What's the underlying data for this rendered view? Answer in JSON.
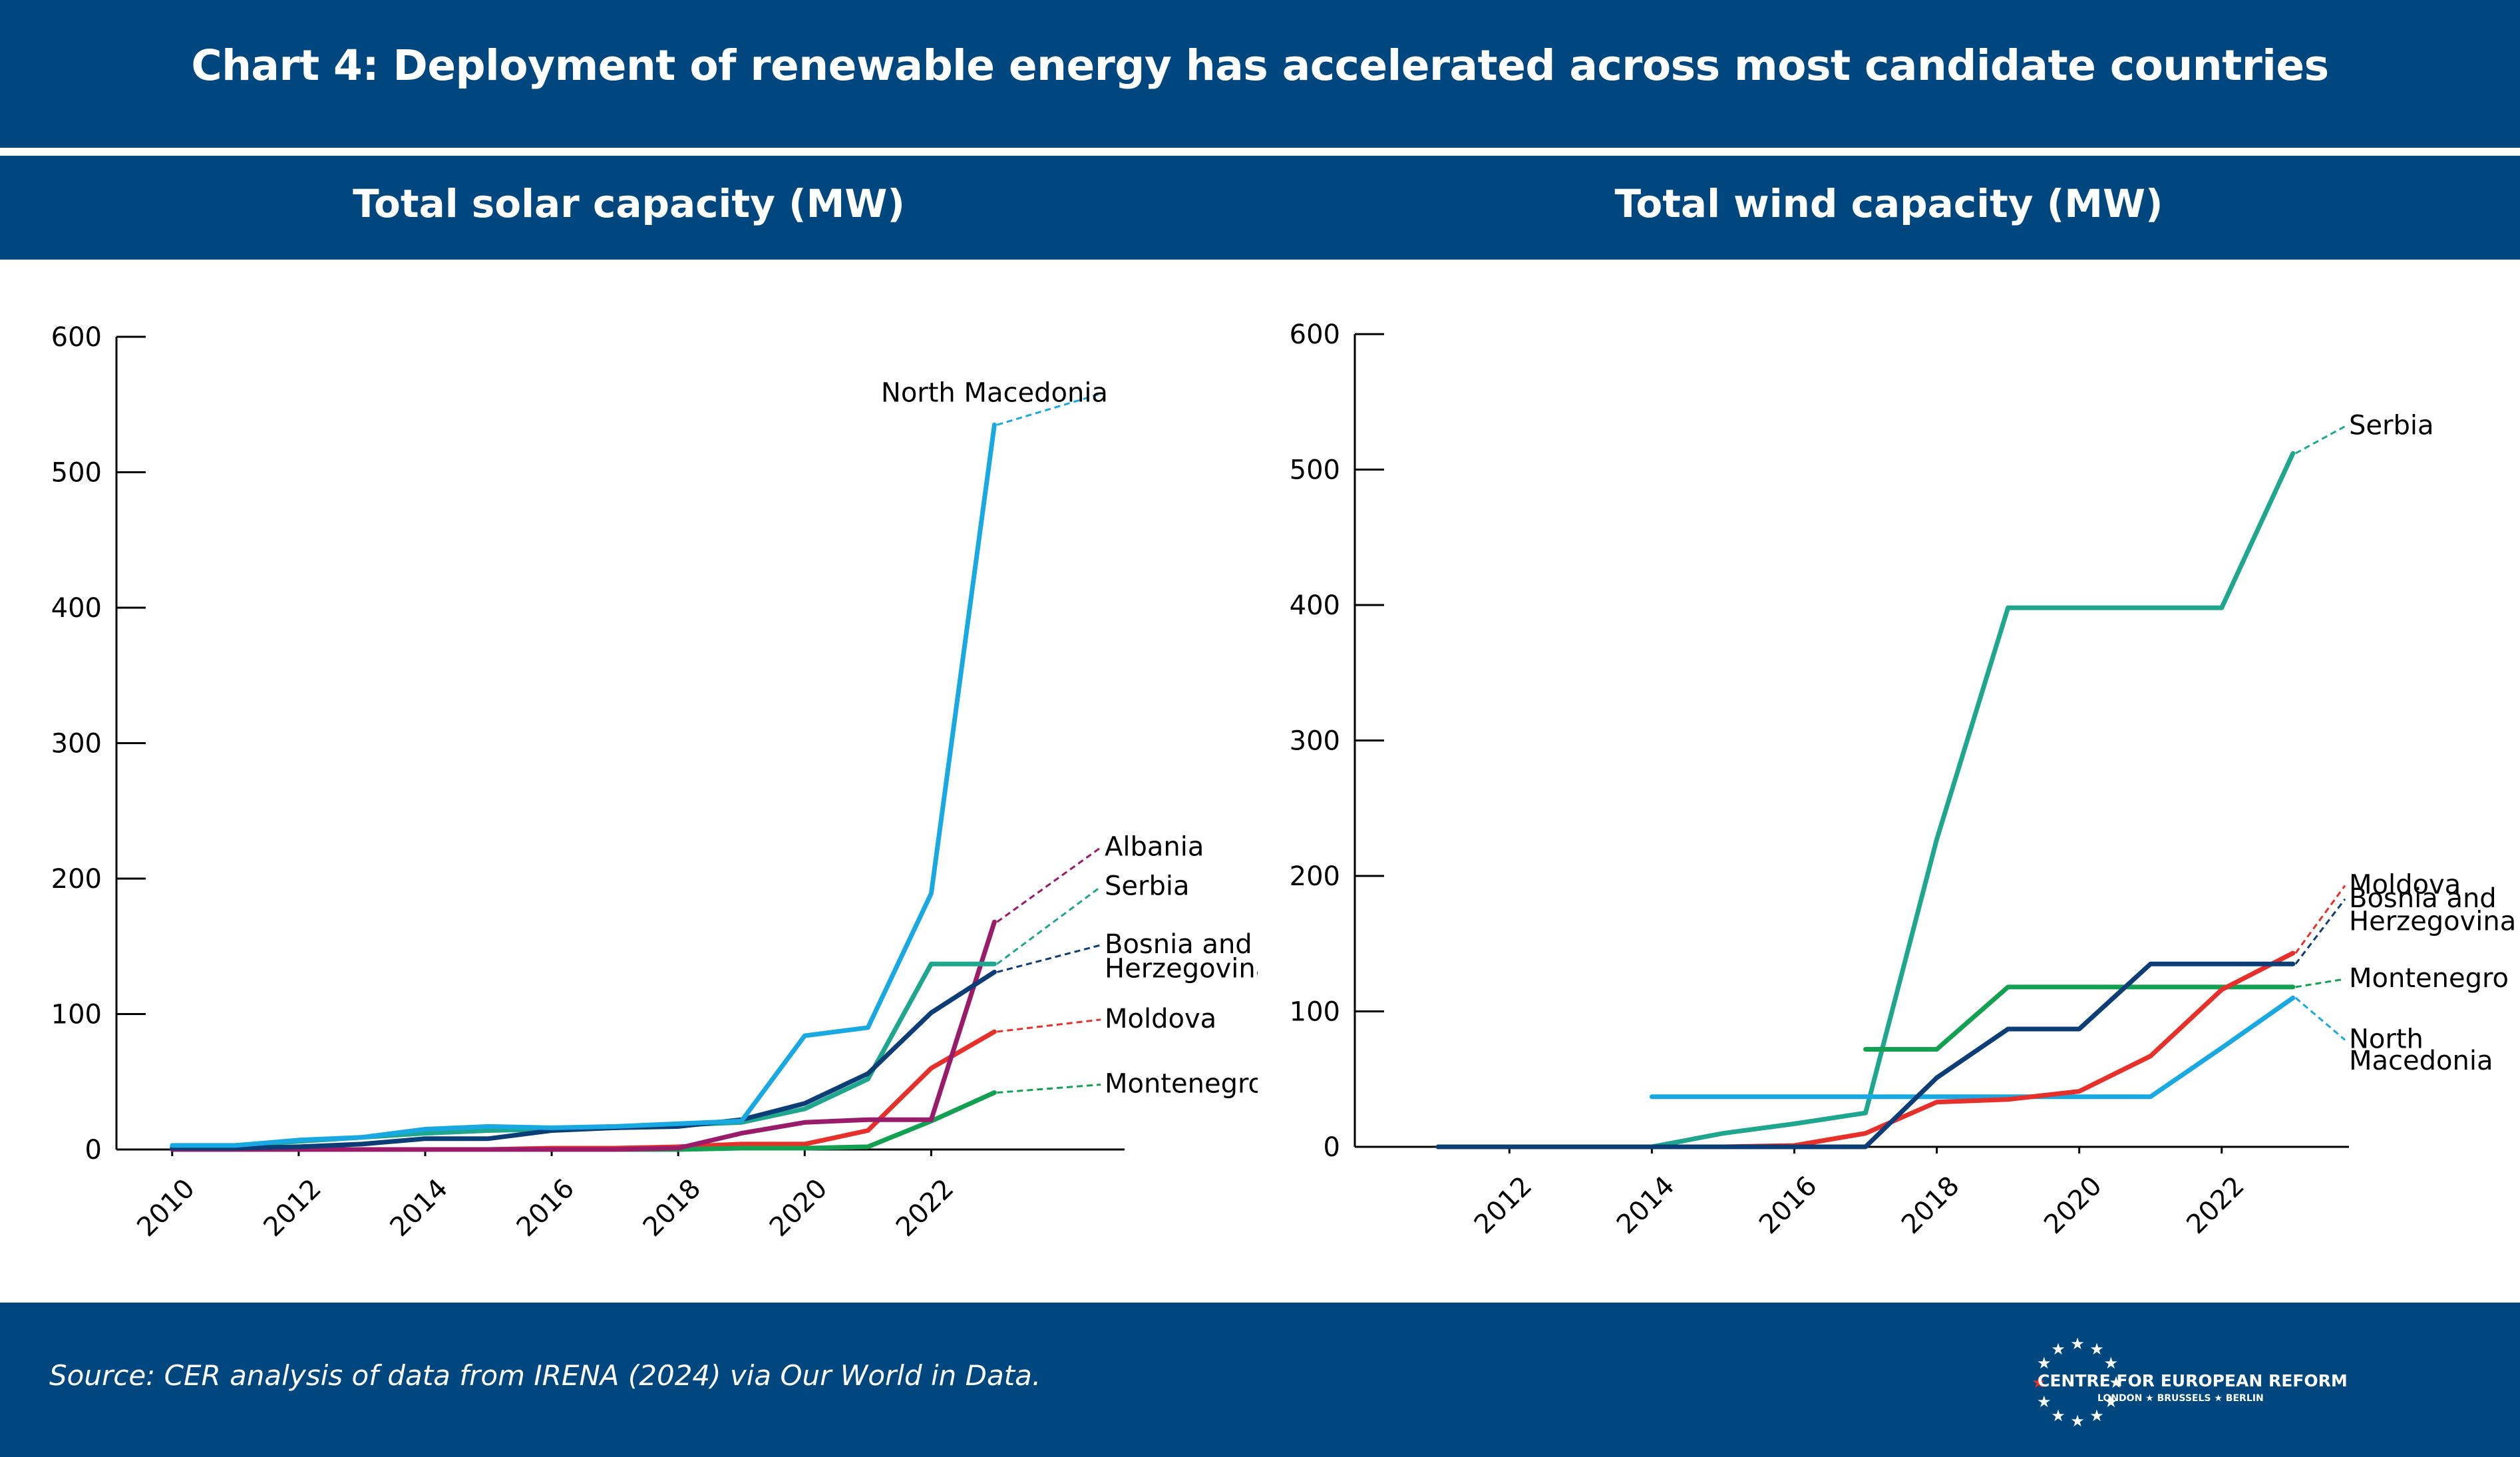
{
  "header": {
    "title": "Chart 4: Deployment of renewable energy has accelerated across most candidate countries"
  },
  "footer": {
    "source": "Source: CER analysis of data from IRENA (2024) via Our World in Data.",
    "logo_name": "CENTRE FOR EUROPEAN REFORM",
    "logo_cities": "LONDON ★ BRUSSELS ★ BERLIN"
  },
  "colors": {
    "band": "#00467f"
  },
  "chart_data": [
    {
      "type": "line",
      "title": "Total solar capacity (MW)",
      "x": [
        2010,
        2011,
        2012,
        2013,
        2014,
        2015,
        2016,
        2017,
        2018,
        2019,
        2020,
        2021,
        2022,
        2023
      ],
      "xticks": [
        2010,
        2012,
        2014,
        2016,
        2018,
        2020,
        2022
      ],
      "xlim": [
        2009.75,
        2024.5
      ],
      "ylim": [
        0,
        600
      ],
      "yticks": [
        0,
        100,
        200,
        300,
        400,
        500,
        600
      ],
      "grid": false,
      "legend": "end-of-line labels",
      "series": [
        {
          "name": "Moldova",
          "color": "#e8302a",
          "values": [
            0,
            0,
            0,
            0,
            0,
            0,
            1,
            1,
            2,
            4,
            4,
            14,
            60,
            87
          ]
        },
        {
          "name": "Montenegro",
          "color": "#12a150",
          "values": [
            0,
            0,
            0,
            0,
            0,
            0,
            0,
            0,
            0,
            1,
            1,
            2,
            21,
            42
          ]
        },
        {
          "name": "Albania",
          "color": "#9b1b6b",
          "values": [
            0,
            0,
            0,
            0,
            0,
            0,
            0,
            0,
            1,
            12,
            20,
            22,
            22,
            168
          ]
        },
        {
          "name": "Serbia",
          "color": "#1ea68e",
          "values": [
            2,
            3,
            6,
            9,
            12,
            14,
            15,
            16,
            18,
            20,
            30,
            52,
            137,
            137
          ]
        },
        {
          "name": "Bosnia and Herzegovina",
          "color": "#0b3d77",
          "values": [
            1,
            1,
            2,
            4,
            8,
            8,
            14,
            16,
            17,
            22,
            34,
            56,
            101,
            131
          ]
        },
        {
          "name": "North Macedonia",
          "color": "#18a9e3",
          "values": [
            3,
            3,
            7,
            9,
            15,
            17,
            16,
            17,
            19,
            21,
            84,
            90,
            189,
            535
          ]
        }
      ],
      "labels": [
        {
          "series": "North Macedonia",
          "text": "North Macedonia",
          "value": 552
        },
        {
          "series": "Albania",
          "text": "Albania",
          "value": 217
        },
        {
          "series": "Serbia",
          "text": "Serbia",
          "value": 188
        },
        {
          "series": "Bosnia and Herzegovina",
          "text": "Bosnia and",
          "value": 145
        },
        {
          "series": "Bosnia and Herzegovina",
          "text": "Herzegovina",
          "value": 127
        },
        {
          "series": "Moldova",
          "text": "Moldova",
          "value": 90
        },
        {
          "series": "Montenegro",
          "text": "Montenegro",
          "value": 42
        }
      ]
    },
    {
      "type": "line",
      "title": "Total wind capacity (MW)",
      "x": [
        2011,
        2012,
        2013,
        2014,
        2015,
        2016,
        2017,
        2018,
        2019,
        2020,
        2021,
        2022,
        2023
      ],
      "xticks": [
        2012,
        2014,
        2016,
        2018,
        2020,
        2022
      ],
      "xlim": [
        2010.4,
        2023.6
      ],
      "ylim": [
        0,
        600
      ],
      "yticks": [
        0,
        100,
        200,
        300,
        400,
        500,
        600
      ],
      "grid": false,
      "legend": "end-of-line labels",
      "series": [
        {
          "name": "Serbia",
          "color": "#1ea68e",
          "values": [
            0,
            0,
            0,
            0,
            10,
            17,
            25,
            227,
            398,
            398,
            398,
            398,
            512
          ]
        },
        {
          "name": "North Macedonia",
          "color": "#18a9e3",
          "values": [
            null,
            null,
            null,
            37,
            37,
            37,
            37,
            37,
            37,
            37,
            37,
            73,
            110
          ]
        },
        {
          "name": "Montenegro",
          "color": "#12a150",
          "values": [
            null,
            null,
            null,
            null,
            null,
            null,
            72,
            72,
            118,
            118,
            118,
            118,
            118
          ]
        },
        {
          "name": "Moldova",
          "color": "#e8302a",
          "values": [
            0,
            0,
            0,
            0,
            0,
            1,
            10,
            33,
            35,
            41,
            67,
            116,
            143
          ]
        },
        {
          "name": "Bosnia and Herzegovina",
          "color": "#0b3d77",
          "values": [
            0,
            0,
            0,
            0,
            0,
            0,
            0,
            51,
            87,
            87,
            135,
            135,
            135
          ]
        }
      ],
      "labels": [
        {
          "series": "Serbia",
          "text": "Serbia",
          "value": 526
        },
        {
          "series": "Moldova",
          "text": "Moldova",
          "value": 187
        },
        {
          "series": "Bosnia and Herzegovina",
          "text": "Bosnia and",
          "value": 177
        },
        {
          "series": "Bosnia and Herzegovina",
          "text": "Herzegovina",
          "value": 160
        },
        {
          "series": "Montenegro",
          "text": "Montenegro",
          "value": 118
        },
        {
          "series": "North Macedonia",
          "text": "North",
          "value": 73
        },
        {
          "series": "North Macedonia",
          "text": "Macedonia",
          "value": 57
        }
      ]
    }
  ]
}
